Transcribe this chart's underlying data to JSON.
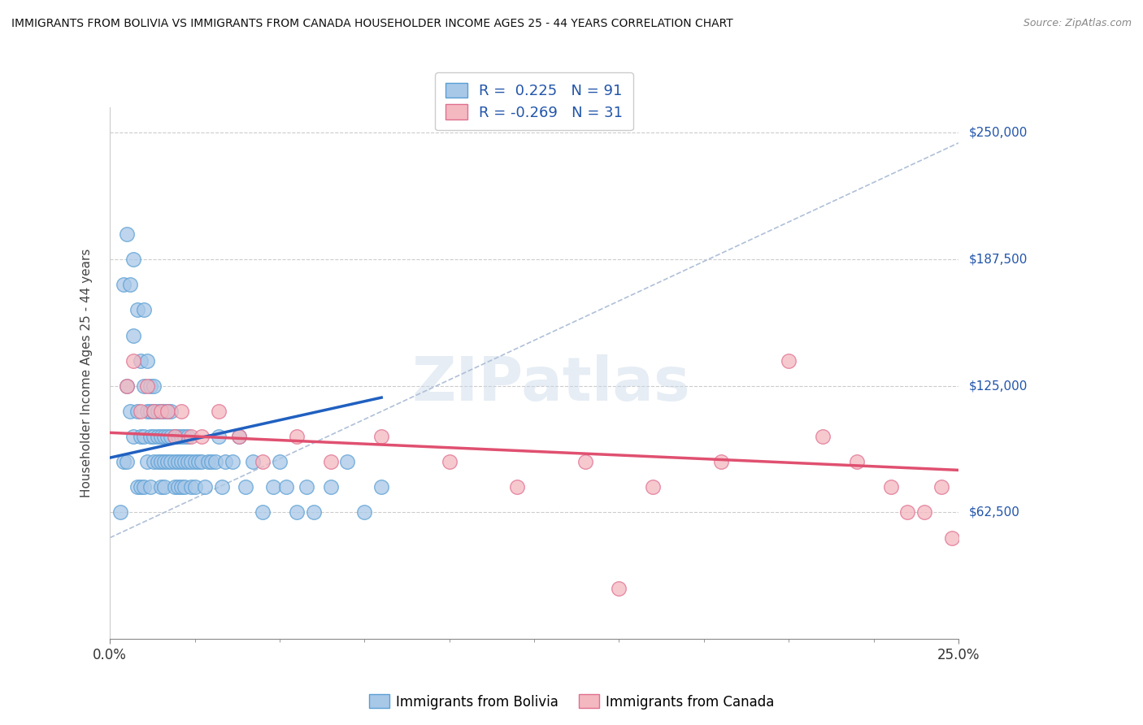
{
  "title": "IMMIGRANTS FROM BOLIVIA VS IMMIGRANTS FROM CANADA HOUSEHOLDER INCOME AGES 25 - 44 YEARS CORRELATION CHART",
  "source": "Source: ZipAtlas.com",
  "ylabel": "Householder Income Ages 25 - 44 years",
  "xlim": [
    0.0,
    0.25
  ],
  "ylim": [
    0,
    262500
  ],
  "yticks": [
    0,
    62500,
    125000,
    187500,
    250000
  ],
  "ytick_labels": [
    "",
    "$62,500",
    "$125,000",
    "$187,500",
    "$250,000"
  ],
  "bolivia_color": "#a8c8e8",
  "canada_color": "#f4b8c0",
  "bolivia_edge": "#5a9fd4",
  "canada_edge": "#e07090",
  "bolivia_line_color": "#2060c0",
  "canada_line_color": "#e05070",
  "trend_line_color": "#b0c0d8",
  "bolivia_R": 0.225,
  "canada_R": -0.269,
  "bolivia_N": 91,
  "canada_N": 31,
  "bolivia_x": [
    0.003,
    0.004,
    0.004,
    0.005,
    0.005,
    0.005,
    0.006,
    0.006,
    0.007,
    0.007,
    0.007,
    0.008,
    0.008,
    0.008,
    0.009,
    0.009,
    0.009,
    0.01,
    0.01,
    0.01,
    0.01,
    0.011,
    0.011,
    0.011,
    0.012,
    0.012,
    0.012,
    0.012,
    0.013,
    0.013,
    0.013,
    0.013,
    0.014,
    0.014,
    0.014,
    0.015,
    0.015,
    0.015,
    0.015,
    0.016,
    0.016,
    0.016,
    0.016,
    0.017,
    0.017,
    0.017,
    0.018,
    0.018,
    0.018,
    0.019,
    0.019,
    0.019,
    0.02,
    0.02,
    0.02,
    0.021,
    0.021,
    0.021,
    0.022,
    0.022,
    0.022,
    0.023,
    0.023,
    0.024,
    0.024,
    0.025,
    0.025,
    0.026,
    0.027,
    0.028,
    0.029,
    0.03,
    0.031,
    0.032,
    0.033,
    0.034,
    0.036,
    0.038,
    0.04,
    0.042,
    0.045,
    0.048,
    0.05,
    0.052,
    0.055,
    0.058,
    0.06,
    0.065,
    0.07,
    0.075,
    0.08
  ],
  "bolivia_y": [
    62500,
    175000,
    87500,
    200000,
    125000,
    87500,
    175000,
    112500,
    187500,
    150000,
    100000,
    162500,
    112500,
    75000,
    137500,
    100000,
    75000,
    162500,
    125000,
    100000,
    75000,
    137500,
    112500,
    87500,
    125000,
    112500,
    100000,
    75000,
    125000,
    112500,
    100000,
    87500,
    112500,
    100000,
    87500,
    112500,
    100000,
    87500,
    75000,
    112500,
    100000,
    87500,
    75000,
    112500,
    100000,
    87500,
    112500,
    100000,
    87500,
    100000,
    87500,
    75000,
    100000,
    87500,
    75000,
    100000,
    87500,
    75000,
    100000,
    87500,
    75000,
    100000,
    87500,
    87500,
    75000,
    87500,
    75000,
    87500,
    87500,
    75000,
    87500,
    87500,
    87500,
    100000,
    75000,
    87500,
    87500,
    100000,
    75000,
    87500,
    62500,
    75000,
    87500,
    75000,
    62500,
    75000,
    62500,
    75000,
    87500,
    62500,
    75000
  ],
  "canada_x": [
    0.005,
    0.007,
    0.009,
    0.011,
    0.013,
    0.015,
    0.017,
    0.019,
    0.021,
    0.024,
    0.027,
    0.032,
    0.038,
    0.045,
    0.055,
    0.065,
    0.08,
    0.1,
    0.12,
    0.14,
    0.16,
    0.18,
    0.2,
    0.21,
    0.22,
    0.23,
    0.235,
    0.24,
    0.245,
    0.248,
    0.15
  ],
  "canada_y": [
    125000,
    137500,
    112500,
    125000,
    112500,
    112500,
    112500,
    100000,
    112500,
    100000,
    100000,
    112500,
    100000,
    87500,
    100000,
    87500,
    100000,
    87500,
    75000,
    87500,
    75000,
    87500,
    137500,
    100000,
    87500,
    75000,
    62500,
    62500,
    75000,
    50000,
    25000
  ]
}
